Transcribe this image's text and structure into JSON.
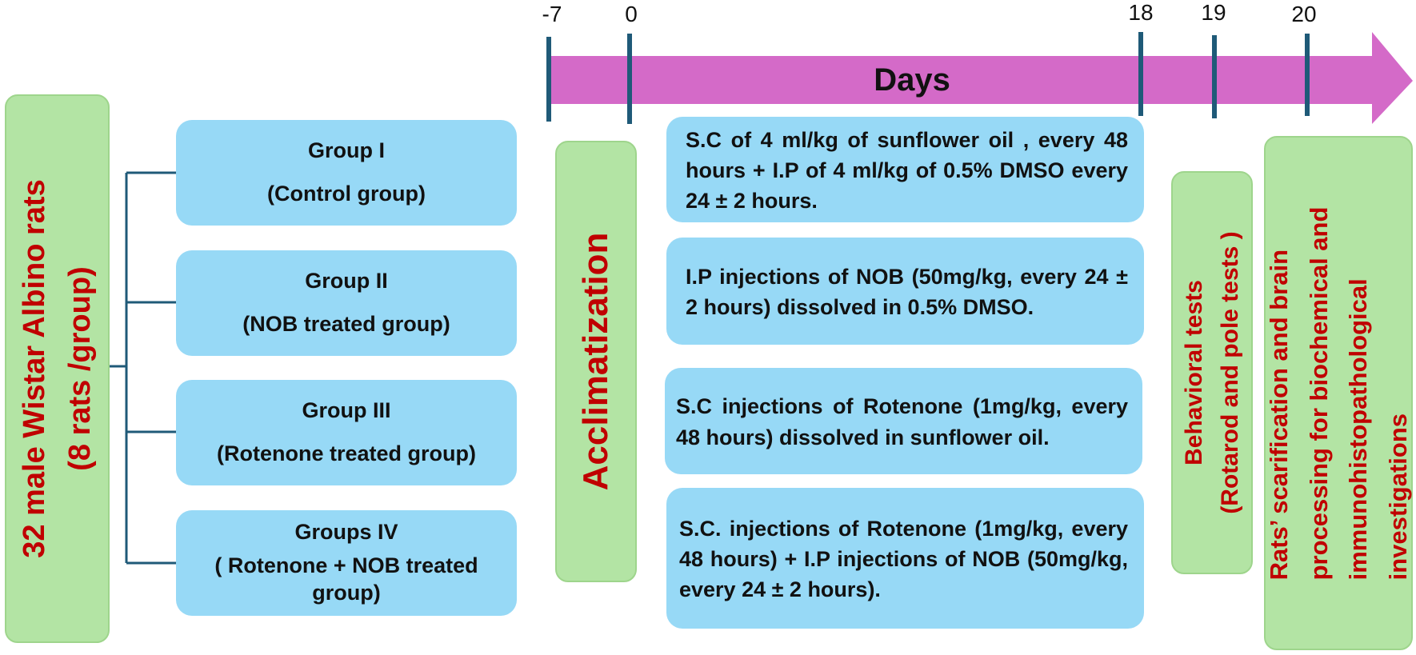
{
  "subjects": {
    "line1": "32 male Wistar Albino rats",
    "line2": "(8 rats /group)"
  },
  "groups": [
    {
      "name": "Group I",
      "desc": "(Control group)"
    },
    {
      "name": "Group II",
      "desc": "(NOB treated group)"
    },
    {
      "name": "Group III",
      "desc": "(Rotenone treated group)"
    },
    {
      "name": "Groups IV",
      "desc": "( Rotenone + NOB treated group)"
    }
  ],
  "acclimatization": "Acclimatization",
  "timeline": {
    "label": "Days",
    "ticks": [
      "-7",
      "0",
      "18",
      "19",
      "20"
    ],
    "arrow_color": "#d46ac8",
    "tick_color": "#1f5a78"
  },
  "treatments": [
    "S.C of 4 ml/kg of sunflower oil , every 48 hours + I.P of 4 ml/kg of 0.5% DMSO every 24 ± 2 hours.",
    "I.P injections of NOB (50mg/kg, every 24 ± 2 hours) dissolved in 0.5% DMSO.",
    "S.C injections of Rotenone (1mg/kg, every 48 hours) dissolved in sunflower oil.",
    "S.C. injections of Rotenone (1mg/kg, every 48 hours) + I.P injections of NOB (50mg/kg, every 24 ± 2 hours)."
  ],
  "behavioral": {
    "line1": "Behavioral tests",
    "line2": "(Rotarod and pole tests )"
  },
  "final": {
    "line1": "Rats’ scarification and brain",
    "line2": "processing for biochemical and",
    "line3": "immunohistopathological",
    "line4": "investigations"
  },
  "colors": {
    "green_fill": "#b3e4a4",
    "blue_fill": "#97d9f6",
    "red_text": "#c00000",
    "connector": "#1f5a78"
  }
}
